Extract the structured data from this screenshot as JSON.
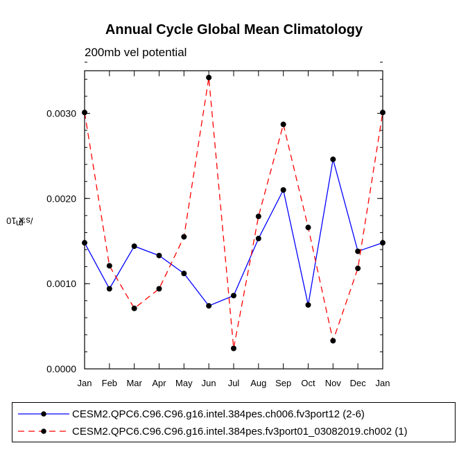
{
  "chart_data": {
    "type": "line",
    "title": "Annual Cycle Global Mean Climatology",
    "subtitle": "200mb vel potential",
    "xlabel": "",
    "ylabel_base": "m",
    "ylabel_sup": "2",
    "ylabel_mid": "/s x 10",
    "ylabel_exp": "6",
    "categories": [
      "Jan",
      "Feb",
      "Mar",
      "Apr",
      "May",
      "Jun",
      "Jul",
      "Aug",
      "Sep",
      "Oct",
      "Nov",
      "Dec",
      "Jan"
    ],
    "ylim": [
      0,
      0.0035
    ],
    "yticks": [
      0.0,
      0.001,
      0.002,
      0.003
    ],
    "ytick_labels": [
      "0.0000",
      "0.0010",
      "0.0020",
      "0.0030"
    ],
    "series": [
      {
        "name": "CESM2.QPC6.C96.C96.g16.intel.384pes.ch006.fv3port12 (2-6)",
        "color": "#0000ff",
        "dash": "solid",
        "values": [
          0.00148,
          0.00094,
          0.00144,
          0.00133,
          0.00112,
          0.00074,
          0.00086,
          0.00153,
          0.0021,
          0.00075,
          0.00246,
          0.00138,
          0.00148
        ]
      },
      {
        "name": "CESM2.QPC6.C96.C96.g16.intel.384pes.fv3port01_03082019.ch002 (1)",
        "color": "#ff0000",
        "dash": "dashed",
        "values": [
          0.00301,
          0.00121,
          0.00071,
          0.00094,
          0.00155,
          0.00342,
          0.00024,
          0.00179,
          0.00287,
          0.00166,
          0.00033,
          0.00118,
          0.00301
        ]
      }
    ]
  }
}
